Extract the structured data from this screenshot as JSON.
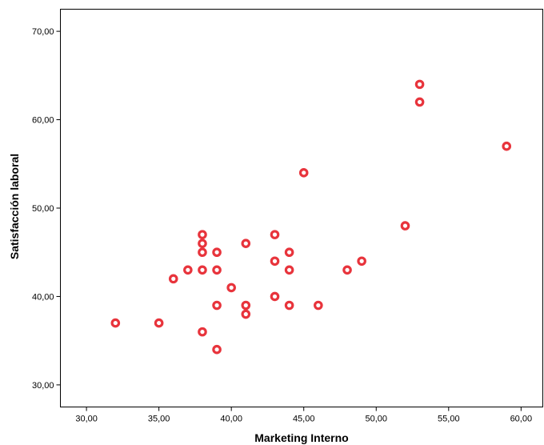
{
  "chart_data": {
    "type": "scatter",
    "title": "",
    "xlabel": "Marketing Interno",
    "ylabel": "Satisfacción laboral",
    "xlim": [
      28.2,
      61.5
    ],
    "ylim": [
      27.5,
      72.5
    ],
    "x_ticks": [
      "30,00",
      "35,00",
      "40,00",
      "45,00",
      "50,00",
      "55,00",
      "60,00"
    ],
    "y_ticks": [
      "30,00",
      "40,00",
      "50,00",
      "60,00",
      "70,00"
    ],
    "grid": false,
    "legend": "none",
    "marker_color": "#e8343c",
    "points": [
      [
        32,
        37
      ],
      [
        35,
        37
      ],
      [
        36,
        42
      ],
      [
        37,
        43
      ],
      [
        38,
        47
      ],
      [
        38,
        46
      ],
      [
        38,
        45
      ],
      [
        38,
        43
      ],
      [
        38,
        36
      ],
      [
        39,
        45
      ],
      [
        39,
        43
      ],
      [
        39,
        39
      ],
      [
        39,
        34
      ],
      [
        40,
        41
      ],
      [
        41,
        46
      ],
      [
        41,
        39
      ],
      [
        41,
        38
      ],
      [
        43,
        47
      ],
      [
        43,
        44
      ],
      [
        43,
        40
      ],
      [
        44,
        45
      ],
      [
        44,
        43
      ],
      [
        44,
        39
      ],
      [
        45,
        54
      ],
      [
        46,
        39
      ],
      [
        48,
        43
      ],
      [
        49,
        44
      ],
      [
        52,
        48
      ],
      [
        53,
        64
      ],
      [
        53,
        62
      ],
      [
        59,
        57
      ]
    ]
  }
}
